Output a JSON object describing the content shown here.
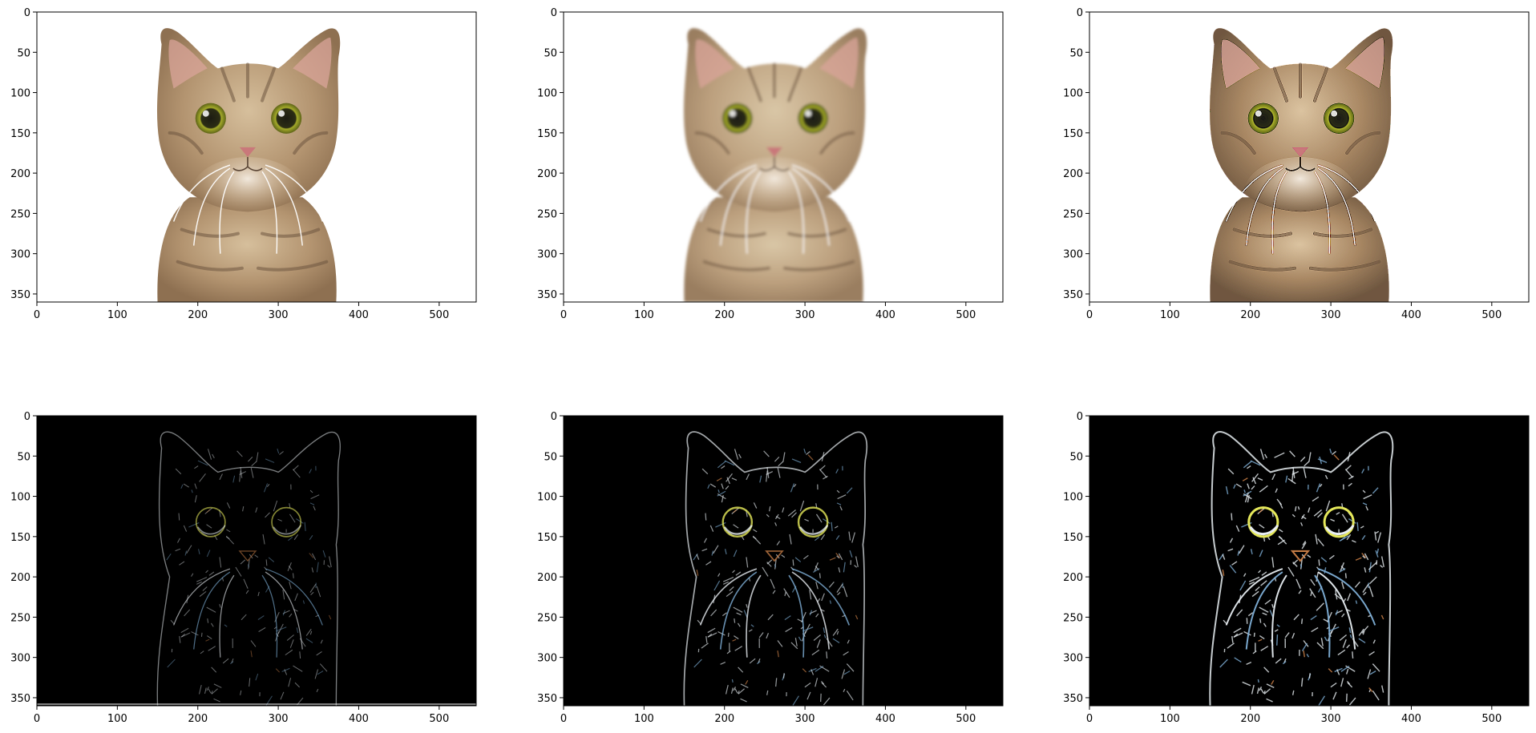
{
  "figure": {
    "background": "#ffffff",
    "layout": "2 rows x 3 columns image grid"
  },
  "chart_data": [
    {
      "type": "image",
      "image_content": "cat photograph, original",
      "background_color": "#ffffff",
      "xlim": [
        0,
        546
      ],
      "ylim": [
        360,
        0
      ],
      "xticks": [
        0,
        100,
        200,
        300,
        400,
        500
      ],
      "yticks": [
        0,
        50,
        100,
        150,
        200,
        250,
        300,
        350
      ]
    },
    {
      "type": "image",
      "image_content": "cat photograph, blurred",
      "background_color": "#ffffff",
      "xlim": [
        0,
        546
      ],
      "ylim": [
        360,
        0
      ],
      "xticks": [
        0,
        100,
        200,
        300,
        400,
        500
      ],
      "yticks": [
        0,
        50,
        100,
        150,
        200,
        250,
        300,
        350
      ]
    },
    {
      "type": "image",
      "image_content": "cat photograph, sharpened",
      "background_color": "#ffffff",
      "xlim": [
        0,
        546
      ],
      "ylim": [
        360,
        0
      ],
      "xticks": [
        0,
        100,
        200,
        300,
        400,
        500
      ],
      "yticks": [
        0,
        50,
        100,
        150,
        200,
        250,
        300,
        350
      ]
    },
    {
      "type": "image",
      "image_content": "cat edge map, faint thin edges",
      "background_color": "#000000",
      "xlim": [
        0,
        546
      ],
      "ylim": [
        360,
        0
      ],
      "xticks": [
        0,
        100,
        200,
        300,
        400,
        500
      ],
      "yticks": [
        0,
        50,
        100,
        150,
        200,
        250,
        300,
        350
      ]
    },
    {
      "type": "image",
      "image_content": "cat edge map, medium edges",
      "background_color": "#000000",
      "xlim": [
        0,
        546
      ],
      "ylim": [
        360,
        0
      ],
      "xticks": [
        0,
        100,
        200,
        300,
        400,
        500
      ],
      "yticks": [
        0,
        50,
        100,
        150,
        200,
        250,
        300,
        350
      ]
    },
    {
      "type": "image",
      "image_content": "cat edge map, strong edges",
      "background_color": "#000000",
      "xlim": [
        0,
        546
      ],
      "ylim": [
        360,
        0
      ],
      "xticks": [
        0,
        100,
        200,
        300,
        400,
        500
      ],
      "yticks": [
        0,
        50,
        100,
        150,
        200,
        250,
        300,
        350
      ]
    }
  ],
  "colors": {
    "fur_light": "#d9c3a3",
    "fur_mid": "#b0926c",
    "fur_dark": "#6d5540",
    "ear_inner": "#d9a49a",
    "eye_green": "#9aa024",
    "pupil": "#1a1a10",
    "nose": "#c9787a",
    "edge_white": "#e8eef2",
    "edge_blue": "#7fb0d8",
    "edge_yellow": "#e5e85a",
    "edge_orange": "#d8884c"
  }
}
